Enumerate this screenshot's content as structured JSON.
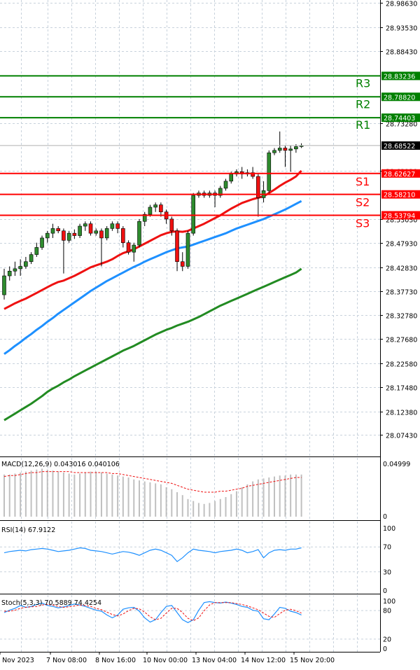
{
  "chart_data": [
    {
      "type": "candlestick",
      "title": "",
      "ylim": [
        28.0743,
        28.9868
      ],
      "y_ticks": [
        "28.98630",
        "28.93530",
        "28.88430",
        "28.73280",
        "28.63120",
        "28.53030",
        "28.47930",
        "28.42830",
        "28.37730",
        "28.32780",
        "28.27680",
        "28.22580",
        "28.17480",
        "28.12380",
        "28.07430"
      ],
      "price_labels": {
        "current": "28.68522"
      },
      "levels": [
        {
          "name": "R3",
          "value": 28.83236,
          "label": "28.83236",
          "color": "#008000"
        },
        {
          "name": "R2",
          "value": 28.7882,
          "label": "28.78820",
          "color": "#008000"
        },
        {
          "name": "R1",
          "value": 28.74403,
          "label": "28.74403",
          "color": "#008000"
        },
        {
          "name": "S1",
          "value": 28.62627,
          "label": "28.62627",
          "color": "#ff0000"
        },
        {
          "name": "S2",
          "value": 28.5821,
          "label": "28.58210",
          "color": "#ff0000"
        },
        {
          "name": "S3",
          "value": 28.53794,
          "label": "28.53794",
          "color": "#ff0000"
        }
      ],
      "candles": [
        [
          28.37,
          28.41,
          28.36,
          28.425
        ],
        [
          28.41,
          28.42,
          28.4,
          28.43
        ],
        [
          28.42,
          28.425,
          28.41,
          28.44
        ],
        [
          28.425,
          28.43,
          28.41,
          28.445
        ],
        [
          28.43,
          28.44,
          28.425,
          28.45
        ],
        [
          28.44,
          28.455,
          28.435,
          28.46
        ],
        [
          28.455,
          28.47,
          28.45,
          28.48
        ],
        [
          28.47,
          28.49,
          28.465,
          28.495
        ],
        [
          28.49,
          28.5,
          28.48,
          28.505
        ],
        [
          28.5,
          28.51,
          28.49,
          28.52
        ],
        [
          28.51,
          28.505,
          28.5,
          28.515
        ],
        [
          28.505,
          28.485,
          28.415,
          28.51
        ],
        [
          28.485,
          28.5,
          28.48,
          28.505
        ],
        [
          28.5,
          28.495,
          28.488,
          28.508
        ],
        [
          28.495,
          28.515,
          28.49,
          28.52
        ],
        [
          28.515,
          28.52,
          28.505,
          28.525
        ],
        [
          28.52,
          28.5,
          28.495,
          28.525
        ],
        [
          28.5,
          28.505,
          28.495,
          28.51
        ],
        [
          28.505,
          28.49,
          28.43,
          28.51
        ],
        [
          28.49,
          28.51,
          28.485,
          28.515
        ],
        [
          28.51,
          28.52,
          28.505,
          28.525
        ],
        [
          28.52,
          28.51,
          28.5,
          28.525
        ],
        [
          28.51,
          28.48,
          28.47,
          28.515
        ],
        [
          28.48,
          28.46,
          28.455,
          28.485
        ],
        [
          28.46,
          28.475,
          28.44,
          28.48
        ],
        [
          28.475,
          28.525,
          28.47,
          28.53
        ],
        [
          28.525,
          28.54,
          28.515,
          28.545
        ],
        [
          28.54,
          28.555,
          28.535,
          28.56
        ],
        [
          28.555,
          28.56,
          28.545,
          28.565
        ],
        [
          28.56,
          28.545,
          28.535,
          28.565
        ],
        [
          28.545,
          28.53,
          28.52,
          28.55
        ],
        [
          28.53,
          28.505,
          28.495,
          28.535
        ],
        [
          28.505,
          28.44,
          28.42,
          28.51
        ],
        [
          28.44,
          28.43,
          28.42,
          28.46
        ],
        [
          28.43,
          28.5,
          28.425,
          28.505
        ],
        [
          28.5,
          28.58,
          28.495,
          28.585
        ],
        [
          28.58,
          28.585,
          28.575,
          28.59
        ],
        [
          28.585,
          28.58,
          28.575,
          28.59
        ],
        [
          28.58,
          28.585,
          28.575,
          28.59
        ],
        [
          28.585,
          28.58,
          28.555,
          28.59
        ],
        [
          28.58,
          28.595,
          28.575,
          28.6
        ],
        [
          28.595,
          28.61,
          28.59,
          28.615
        ],
        [
          28.61,
          28.625,
          28.605,
          28.63
        ],
        [
          28.625,
          28.63,
          28.62,
          28.635
        ],
        [
          28.63,
          28.625,
          28.615,
          28.64
        ],
        [
          28.625,
          28.628,
          28.62,
          28.635
        ],
        [
          28.628,
          28.62,
          28.615,
          28.64
        ],
        [
          28.62,
          28.575,
          28.535,
          28.625
        ],
        [
          28.575,
          28.59,
          28.565,
          28.61
        ],
        [
          28.59,
          28.67,
          28.585,
          28.675
        ],
        [
          28.67,
          28.675,
          28.665,
          28.68
        ],
        [
          28.675,
          28.68,
          28.67,
          28.715
        ],
        [
          28.68,
          28.675,
          28.64,
          28.685
        ],
        [
          28.675,
          28.678,
          28.63,
          28.685
        ],
        [
          28.678,
          28.683,
          28.67,
          28.688
        ],
        [
          28.683,
          28.685,
          28.68,
          28.69
        ]
      ],
      "ma_red": [
        28.34,
        28.346,
        28.352,
        28.357,
        28.362,
        28.368,
        28.374,
        28.38,
        28.386,
        28.392,
        28.397,
        28.4,
        28.405,
        28.41,
        28.416,
        28.422,
        28.428,
        28.432,
        28.436,
        28.44,
        28.445,
        28.452,
        28.458,
        28.462,
        28.466,
        28.472,
        28.478,
        28.484,
        28.49,
        28.496,
        28.5,
        28.503,
        28.504,
        28.503,
        28.505,
        28.51,
        28.515,
        28.52,
        28.526,
        28.532,
        28.538,
        28.545,
        28.552,
        28.558,
        28.564,
        28.568,
        28.572,
        28.575,
        28.578,
        28.585,
        28.592,
        28.6,
        28.607,
        28.613,
        28.62,
        28.632
      ],
      "ma_blue": [
        28.245,
        28.253,
        28.262,
        28.27,
        28.279,
        28.287,
        28.296,
        28.304,
        28.313,
        28.321,
        28.33,
        28.338,
        28.346,
        28.354,
        28.362,
        28.37,
        28.378,
        28.385,
        28.392,
        28.399,
        28.405,
        28.411,
        28.417,
        28.423,
        28.429,
        28.434,
        28.44,
        28.445,
        28.45,
        28.455,
        28.46,
        28.464,
        28.468,
        28.47,
        28.472,
        28.476,
        28.48,
        28.484,
        28.488,
        28.492,
        28.496,
        28.5,
        28.505,
        28.51,
        28.514,
        28.518,
        28.522,
        28.526,
        28.53,
        28.535,
        28.54,
        28.545,
        28.55,
        28.556,
        28.562,
        28.568
      ],
      "ma_green": [
        28.105,
        28.112,
        28.119,
        28.126,
        28.133,
        28.14,
        28.148,
        28.156,
        28.165,
        28.172,
        28.178,
        28.185,
        28.191,
        28.198,
        28.204,
        28.21,
        28.216,
        28.222,
        28.228,
        28.234,
        28.24,
        28.246,
        28.252,
        28.257,
        28.262,
        28.268,
        28.274,
        28.28,
        28.286,
        28.291,
        28.296,
        28.3,
        28.305,
        28.309,
        28.313,
        28.318,
        28.323,
        28.329,
        28.335,
        28.341,
        28.347,
        28.352,
        28.357,
        28.362,
        28.367,
        28.372,
        28.377,
        28.382,
        28.387,
        28.392,
        28.397,
        28.402,
        28.407,
        28.412,
        28.417,
        28.425
      ]
    },
    {
      "type": "bar",
      "title": "MACD(12,26,9) 0.043016 0.040106",
      "ylim": [
        0,
        0.05
      ],
      "y_ticks": [
        "0.04999",
        "0"
      ],
      "values": [
        0.043,
        0.043,
        0.044,
        0.045,
        0.046,
        0.047,
        0.048,
        0.049,
        0.048,
        0.047,
        0.046,
        0.045,
        0.044,
        0.043,
        0.044,
        0.045,
        0.046,
        0.046,
        0.045,
        0.044,
        0.043,
        0.042,
        0.041,
        0.04,
        0.038,
        0.037,
        0.036,
        0.035,
        0.034,
        0.033,
        0.03,
        0.028,
        0.025,
        0.022,
        0.018,
        0.016,
        0.014,
        0.013,
        0.014,
        0.016,
        0.018,
        0.02,
        0.023,
        0.026,
        0.03,
        0.033,
        0.036,
        0.038,
        0.039,
        0.04,
        0.041,
        0.042,
        0.042,
        0.043,
        0.043,
        0.043
      ],
      "signal": [
        0.041,
        0.042,
        0.042,
        0.043,
        0.044,
        0.045,
        0.045,
        0.046,
        0.046,
        0.046,
        0.046,
        0.046,
        0.046,
        0.045,
        0.045,
        0.045,
        0.045,
        0.045,
        0.045,
        0.045,
        0.044,
        0.044,
        0.043,
        0.042,
        0.041,
        0.04,
        0.039,
        0.038,
        0.037,
        0.036,
        0.035,
        0.034,
        0.032,
        0.03,
        0.028,
        0.027,
        0.026,
        0.025,
        0.025,
        0.025,
        0.026,
        0.026,
        0.027,
        0.028,
        0.029,
        0.031,
        0.032,
        0.033,
        0.034,
        0.035,
        0.036,
        0.037,
        0.038,
        0.039,
        0.04,
        0.04
      ]
    },
    {
      "type": "line",
      "title": "RSI(14) 67.9122",
      "ylim": [
        0,
        100
      ],
      "y_ticks": [
        100,
        70,
        30,
        0
      ],
      "values": [
        60,
        62,
        63,
        64,
        63,
        65,
        66,
        67,
        66,
        64,
        62,
        63,
        64,
        66,
        68,
        67,
        64,
        63,
        62,
        60,
        58,
        60,
        62,
        61,
        59,
        56,
        60,
        64,
        66,
        64,
        60,
        56,
        46,
        52,
        60,
        66,
        64,
        63,
        62,
        60,
        62,
        63,
        64,
        66,
        64,
        60,
        62,
        65,
        52,
        60,
        64,
        65,
        64,
        66,
        66,
        68
      ]
    },
    {
      "type": "line",
      "title": "Stoch(5,3,3) 70.5889 74.4254",
      "ylim": [
        0,
        100
      ],
      "y_ticks": [
        100,
        80,
        20,
        0
      ],
      "k": [
        75,
        80,
        84,
        90,
        86,
        88,
        92,
        95,
        90,
        88,
        85,
        87,
        90,
        93,
        91,
        88,
        84,
        80,
        78,
        70,
        64,
        70,
        82,
        85,
        86,
        78,
        64,
        55,
        60,
        75,
        88,
        90,
        75,
        60,
        54,
        60,
        80,
        96,
        98,
        96,
        95,
        97,
        95,
        92,
        88,
        86,
        80,
        78,
        62,
        60,
        72,
        86,
        84,
        78,
        75,
        70
      ],
      "d": [
        78,
        78,
        80,
        84,
        86,
        87,
        88,
        91,
        92,
        91,
        88,
        86,
        87,
        89,
        91,
        90,
        88,
        84,
        81,
        76,
        71,
        68,
        72,
        79,
        84,
        83,
        76,
        66,
        60,
        63,
        74,
        84,
        84,
        75,
        63,
        58,
        64,
        79,
        91,
        96,
        96,
        96,
        96,
        94,
        92,
        89,
        85,
        81,
        74,
        67,
        65,
        73,
        80,
        82,
        79,
        74
      ]
    }
  ],
  "x_axis": {
    "labels": [
      "6 Nov 2023",
      "7 Nov 08:00",
      "8 Nov 16:00",
      "10 Nov 00:00",
      "13 Nov 04:00",
      "14 Nov 12:00",
      "15 Nov 20:00"
    ]
  },
  "colors": {
    "bull": "#2e8b2e",
    "bear": "#ee1111",
    "ma_red": "#ee1111",
    "ma_blue": "#1e90ff",
    "ma_green": "#228b22",
    "grid": "#c8d2dc",
    "rsi": "#1e90ff",
    "stoch_k": "#1e90ff",
    "stoch_d": "#ee1111",
    "macd_hist": "#c0c0c0",
    "macd_signal": "#ee1111"
  }
}
